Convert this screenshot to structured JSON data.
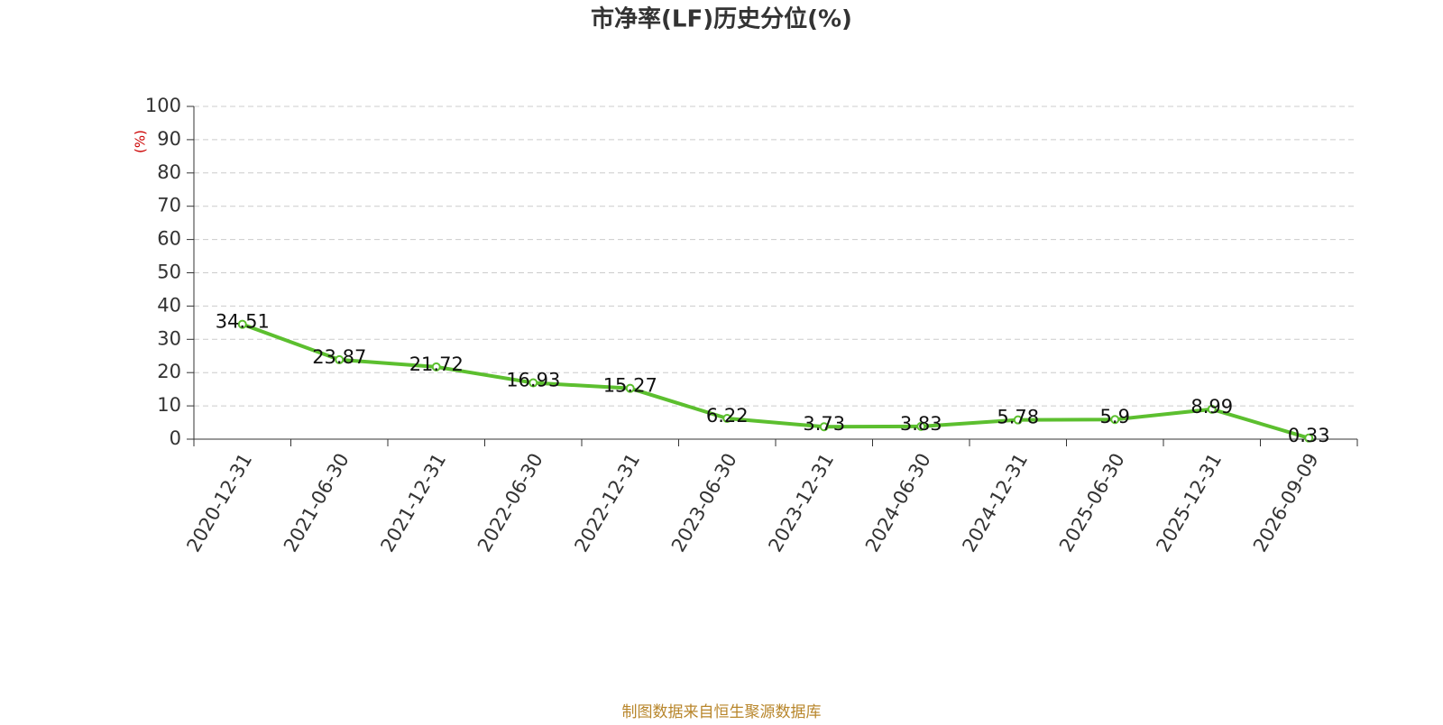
{
  "chart_data": {
    "type": "line",
    "title": "市净率(LF)历史分位(%)",
    "y_label": "(%)",
    "source": "制图数据来自恒生聚源数据库",
    "categories": [
      "2020-12-31",
      "2021-06-30",
      "2021-12-31",
      "2022-06-30",
      "2022-12-31",
      "2023-06-30",
      "2023-12-31",
      "2024-06-30",
      "2024-12-31",
      "2025-06-30",
      "2025-12-31",
      "2026-09-09"
    ],
    "series": [
      {
        "name": "市净率(LF)历史分位",
        "color": "#5cbf2f",
        "values": [
          34.51,
          23.87,
          21.72,
          16.93,
          15.27,
          6.22,
          3.73,
          3.83,
          5.78,
          5.9,
          8.99,
          0.33
        ]
      }
    ],
    "ylim": [
      0,
      100
    ],
    "yticks": [
      0,
      10,
      20,
      30,
      40,
      50,
      60,
      70,
      80,
      90,
      100
    ],
    "grid": true
  }
}
